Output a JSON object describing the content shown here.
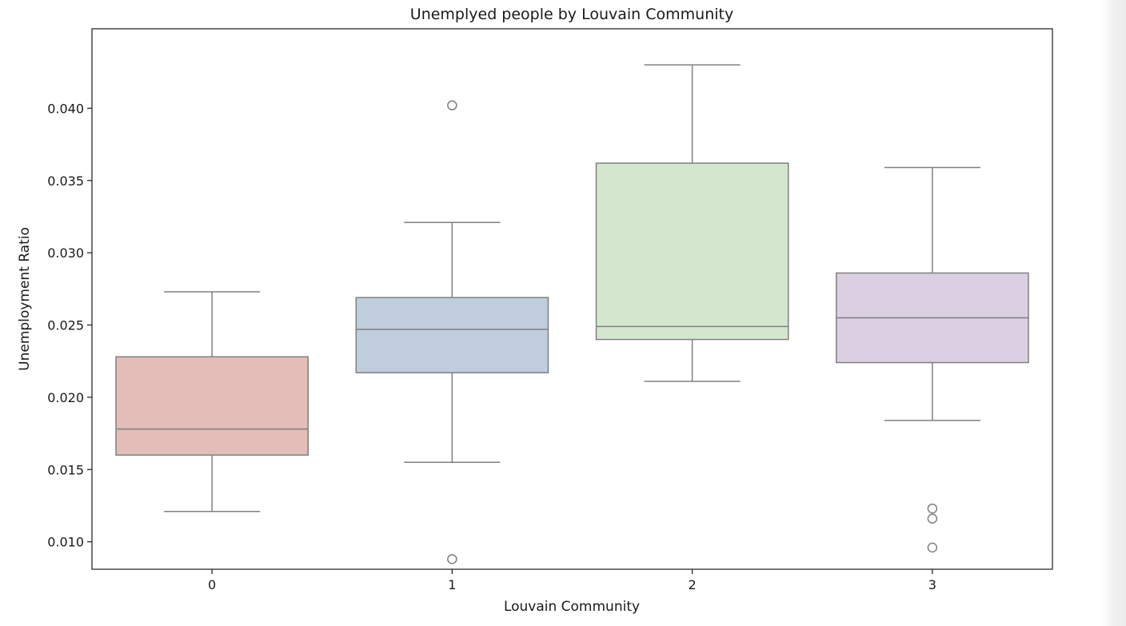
{
  "chart_data": {
    "type": "box",
    "title": "Unemplyed people by Louvain Community",
    "xlabel": "Louvain Community",
    "ylabel": "Unemployment Ratio",
    "categories": [
      "0",
      "1",
      "2",
      "3"
    ],
    "ylim": [
      0.0081,
      0.0455
    ],
    "yticks": [
      0.01,
      0.015,
      0.02,
      0.025,
      0.03,
      0.035,
      0.04
    ],
    "ytick_labels": [
      "0.010",
      "0.015",
      "0.020",
      "0.025",
      "0.030",
      "0.035",
      "0.040"
    ],
    "grid": false,
    "boxes": [
      {
        "category": "0",
        "whisker_low": 0.0121,
        "q1": 0.016,
        "median": 0.0178,
        "q3": 0.0228,
        "whisker_high": 0.0273,
        "outliers": []
      },
      {
        "category": "1",
        "whisker_low": 0.0155,
        "q1": 0.0217,
        "median": 0.0247,
        "q3": 0.0269,
        "whisker_high": 0.0321,
        "outliers": [
          0.0402,
          0.0088
        ]
      },
      {
        "category": "2",
        "whisker_low": 0.0211,
        "q1": 0.024,
        "median": 0.0249,
        "q3": 0.0362,
        "whisker_high": 0.043,
        "outliers": []
      },
      {
        "category": "3",
        "whisker_low": 0.0184,
        "q1": 0.0224,
        "median": 0.0255,
        "q3": 0.0286,
        "whisker_high": 0.0359,
        "outliers": [
          0.0123,
          0.0116,
          0.0096
        ]
      }
    ],
    "colors": [
      "#e3bdb8",
      "#bfcddd",
      "#d5e6cf",
      "#dbcfe2"
    ],
    "line_color": "#808080"
  }
}
